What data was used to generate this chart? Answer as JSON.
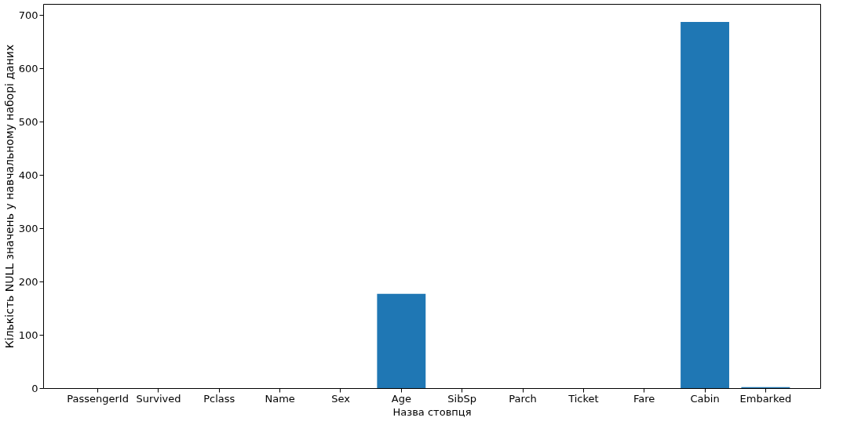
{
  "chart_data": {
    "type": "bar",
    "categories": [
      "PassengerId",
      "Survived",
      "Pclass",
      "Name",
      "Sex",
      "Age",
      "SibSp",
      "Parch",
      "Ticket",
      "Fare",
      "Cabin",
      "Embarked"
    ],
    "values": [
      0,
      0,
      0,
      0,
      0,
      177,
      0,
      0,
      0,
      0,
      687,
      2
    ],
    "color": "#1f77b4",
    "xlabel": "Назва стовпця",
    "ylabel": "Кількість NULL значень у навчальному наборі даних",
    "ylim": [
      0,
      721
    ],
    "yticks": [
      0,
      100,
      200,
      300,
      400,
      500,
      600,
      700
    ],
    "grid": false
  }
}
